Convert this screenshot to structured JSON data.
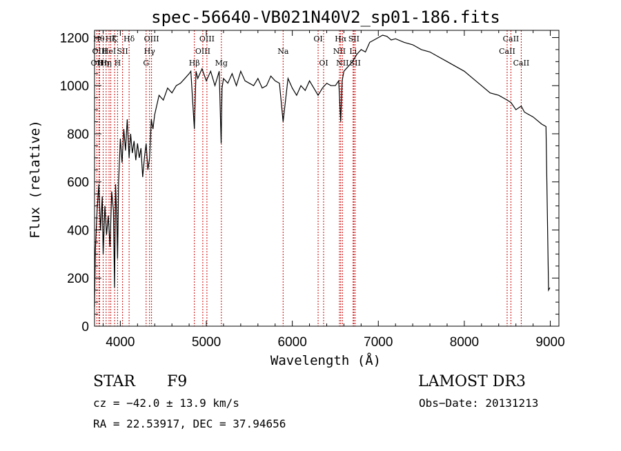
{
  "chart_data": {
    "type": "line",
    "title": "spec-56640-VB021N40V2_sp01-186.fits",
    "xlabel": "Wavelength (Å)",
    "ylabel": "Flux (relative)",
    "xlim": [
      3700,
      9100
    ],
    "ylim": [
      0,
      1230
    ],
    "xticks": [
      {
        "value": 4000,
        "label": "4000"
      },
      {
        "value": 5000,
        "label": "5000"
      },
      {
        "value": 6000,
        "label": "6000"
      },
      {
        "value": 7000,
        "label": "7000"
      },
      {
        "value": 8000,
        "label": "8000"
      },
      {
        "value": 9000,
        "label": "9000"
      }
    ],
    "yticks": [
      {
        "value": 0,
        "label": "0"
      },
      {
        "value": 200,
        "label": "200"
      },
      {
        "value": 400,
        "label": "400"
      },
      {
        "value": 600,
        "label": "600"
      },
      {
        "value": 800,
        "label": "800"
      },
      {
        "value": 1000,
        "label": "1000"
      },
      {
        "value": 1200,
        "label": "1200"
      }
    ],
    "series": [
      {
        "name": "flux",
        "color": "#000000",
        "x": [
          3700,
          3710,
          3730,
          3750,
          3770,
          3790,
          3800,
          3820,
          3840,
          3860,
          3880,
          3900,
          3920,
          3933,
          3945,
          3960,
          3968,
          3980,
          4000,
          4020,
          4040,
          4060,
          4080,
          4102,
          4120,
          4140,
          4160,
          4180,
          4200,
          4220,
          4240,
          4260,
          4280,
          4300,
          4320,
          4340,
          4360,
          4380,
          4400,
          4450,
          4500,
          4550,
          4600,
          4650,
          4700,
          4750,
          4800,
          4820,
          4861,
          4880,
          4900,
          4950,
          5000,
          5050,
          5100,
          5150,
          5172,
          5183,
          5200,
          5250,
          5300,
          5350,
          5400,
          5450,
          5500,
          5550,
          5600,
          5650,
          5700,
          5750,
          5800,
          5850,
          5893,
          5950,
          6000,
          6050,
          6100,
          6150,
          6200,
          6250,
          6300,
          6350,
          6400,
          6450,
          6500,
          6540,
          6563,
          6580,
          6600,
          6650,
          6700,
          6750,
          6800,
          6850,
          6900,
          6950,
          7000,
          7050,
          7100,
          7150,
          7200,
          7300,
          7400,
          7500,
          7600,
          7700,
          7800,
          7900,
          8000,
          8100,
          8200,
          8300,
          8400,
          8498,
          8542,
          8600,
          8662,
          8700,
          8800,
          8900,
          8950,
          8980,
          8995
        ],
        "values": [
          80,
          320,
          480,
          590,
          400,
          540,
          300,
          500,
          380,
          460,
          330,
          560,
          480,
          160,
          590,
          430,
          280,
          600,
          780,
          680,
          820,
          730,
          860,
          700,
          800,
          720,
          770,
          690,
          760,
          700,
          740,
          620,
          700,
          760,
          650,
          700,
          860,
          820,
          880,
          960,
          940,
          990,
          970,
          1000,
          1010,
          1030,
          1050,
          1060,
          820,
          1060,
          1030,
          1070,
          1020,
          1060,
          1000,
          1060,
          760,
          990,
          1030,
          1010,
          1050,
          1000,
          1060,
          1020,
          1010,
          1000,
          1030,
          990,
          1000,
          1040,
          1020,
          1010,
          850,
          1030,
          990,
          960,
          1000,
          980,
          1020,
          990,
          960,
          990,
          1010,
          1000,
          1000,
          1020,
          850,
          1020,
          1060,
          1080,
          1100,
          1130,
          1150,
          1140,
          1180,
          1190,
          1200,
          1210,
          1205,
          1190,
          1195,
          1180,
          1170,
          1150,
          1140,
          1120,
          1100,
          1080,
          1060,
          1030,
          1000,
          970,
          960,
          940,
          930,
          900,
          915,
          890,
          870,
          840,
          830,
          150,
          160
        ]
      }
    ],
    "line_markers": [
      {
        "wavelength": 3727,
        "label": "OII",
        "row": 2
      },
      {
        "wavelength": 3750,
        "label": "Hθ",
        "row": 0
      },
      {
        "wavelength": 3760,
        "label": "OIII",
        "row": 1
      },
      {
        "wavelength": 3800,
        "label": "Hη",
        "row": 2
      },
      {
        "wavelength": 3835,
        "label": "Hη",
        "row": 2
      },
      {
        "wavelength": 3869,
        "label": "HeI",
        "row": 1
      },
      {
        "wavelength": 3889,
        "label": "Hζ",
        "row": 0
      },
      {
        "wavelength": 3933,
        "label": "K",
        "row": 0
      },
      {
        "wavelength": 3968,
        "label": "H",
        "row": 2
      },
      {
        "wavelength": 4026,
        "label": "SII",
        "row": 1
      },
      {
        "wavelength": 4102,
        "label": "Hδ",
        "row": 0
      },
      {
        "wavelength": 4300,
        "label": "G",
        "row": 2
      },
      {
        "wavelength": 4340,
        "label": "Hγ",
        "row": 1
      },
      {
        "wavelength": 4363,
        "label": "OIII",
        "row": 0
      },
      {
        "wavelength": 4861,
        "label": "Hβ",
        "row": 2
      },
      {
        "wavelength": 4959,
        "label": "OIII",
        "row": 1
      },
      {
        "wavelength": 5007,
        "label": "OIII",
        "row": 0
      },
      {
        "wavelength": 5175,
        "label": "Mg",
        "row": 2
      },
      {
        "wavelength": 5893,
        "label": "Na",
        "row": 1
      },
      {
        "wavelength": 6300,
        "label": "OI",
        "row": 0
      },
      {
        "wavelength": 6364,
        "label": "OI",
        "row": 2
      },
      {
        "wavelength": 6548,
        "label": "NII",
        "row": 1
      },
      {
        "wavelength": 6563,
        "label": "Hα",
        "row": 0
      },
      {
        "wavelength": 6583,
        "label": "NII",
        "row": 2
      },
      {
        "wavelength": 6707,
        "label": "Li",
        "row": 1
      },
      {
        "wavelength": 6716,
        "label": "SII",
        "row": 0
      },
      {
        "wavelength": 6731,
        "label": "SII",
        "row": 2
      },
      {
        "wavelength": 8498,
        "label": "CaII",
        "row": 1
      },
      {
        "wavelength": 8542,
        "label": "CaII",
        "row": 0
      },
      {
        "wavelength": 8662,
        "label": "CaII",
        "row": 2
      }
    ],
    "marker_color": "#cc0000"
  },
  "info": {
    "object_class": "STAR",
    "subclass": "F9",
    "survey": "LAMOST DR3",
    "cz": "cz = −42.0 ± 13.9 km/s",
    "obs_date": "Obs−Date: 20131213",
    "coords": "RA =  22.53917, DEC =  37.94656"
  }
}
